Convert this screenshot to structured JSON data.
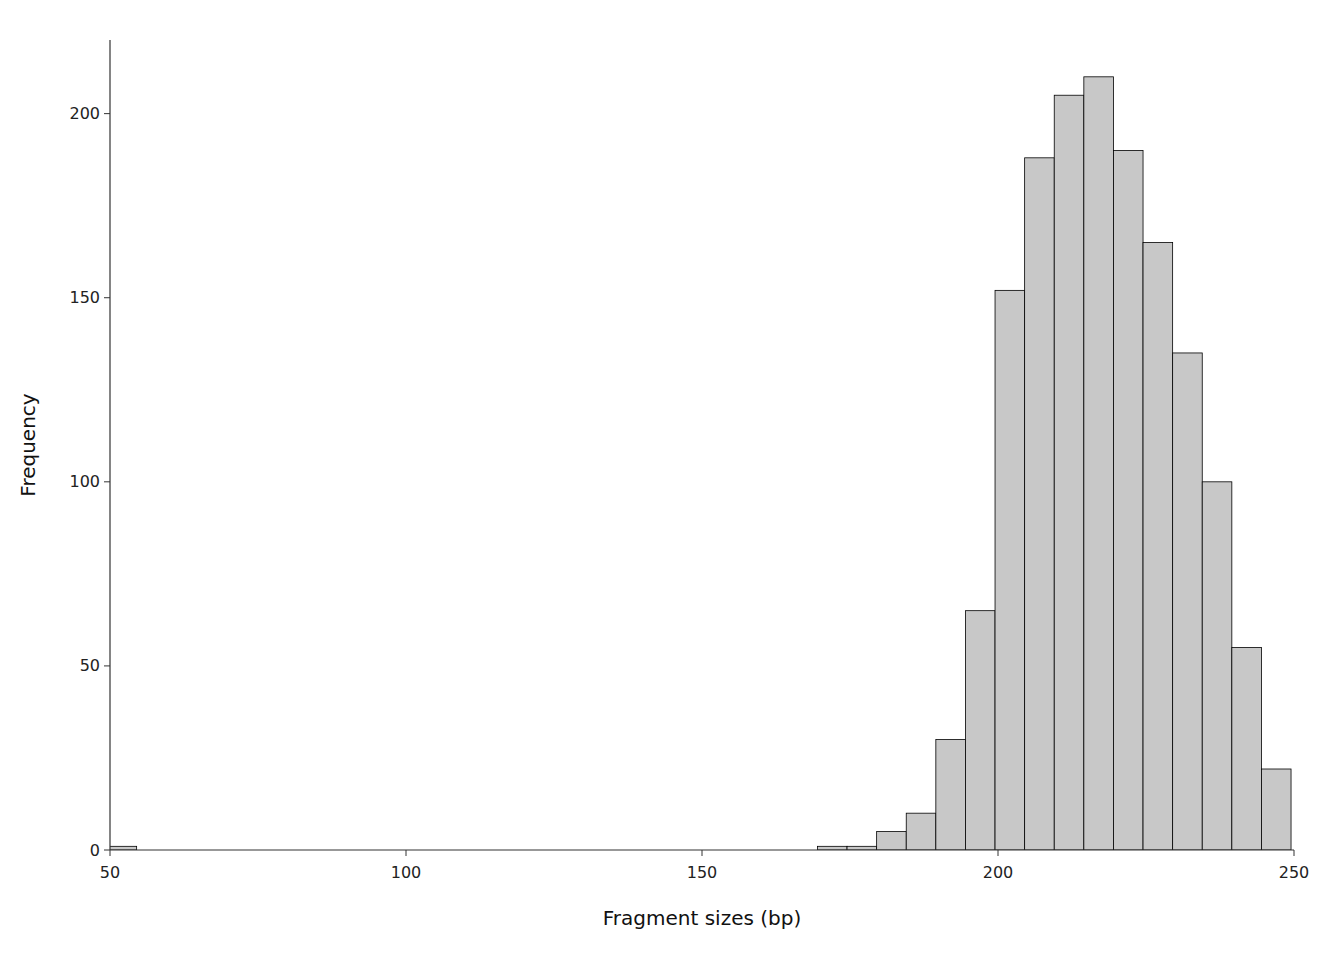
{
  "chart_data": {
    "type": "bar",
    "xlabel": "Fragment sizes (bp)",
    "ylabel": "Frequency",
    "x": [
      52,
      57,
      62,
      67,
      72,
      77,
      82,
      87,
      92,
      97,
      102,
      107,
      112,
      117,
      122,
      127,
      132,
      137,
      142,
      147,
      152,
      157,
      162,
      167,
      172,
      177,
      182,
      187,
      192,
      197,
      202,
      207,
      212,
      217,
      222,
      227,
      232,
      237,
      242,
      247
    ],
    "values": [
      1,
      0,
      0,
      0,
      0,
      0,
      0,
      0,
      0,
      0,
      0,
      0,
      0,
      0,
      0,
      0,
      0,
      0,
      0,
      0,
      0,
      0,
      0,
      0,
      1,
      1,
      5,
      10,
      30,
      65,
      152,
      188,
      205,
      210,
      190,
      165,
      135,
      100,
      55,
      22
    ],
    "color": "#c8c8c8",
    "xlim": [
      50,
      250
    ],
    "ylim": [
      0,
      220
    ],
    "xticks": [
      50,
      100,
      150,
      200,
      250
    ],
    "yticks": [
      0,
      50,
      100,
      150,
      200
    ],
    "grid": false
  }
}
